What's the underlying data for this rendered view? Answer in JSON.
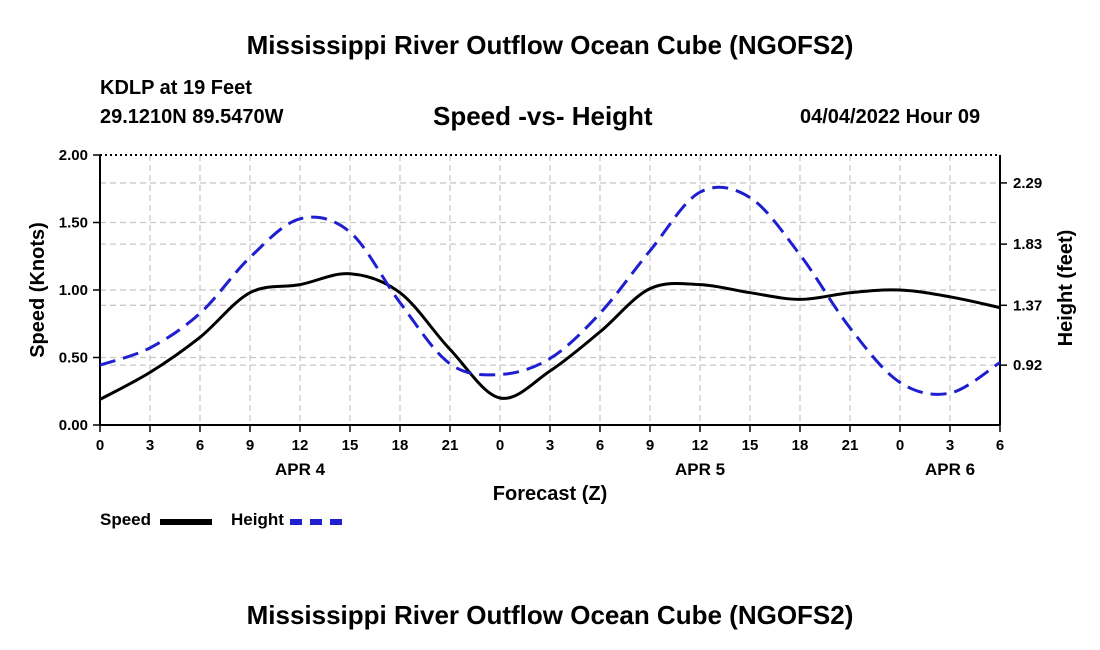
{
  "title": "Mississippi River Outflow Ocean Cube (NGOFS2)",
  "station": {
    "name": "KDLP at 19 Feet",
    "coords": "29.1210N  89.5470W"
  },
  "subtitle": "Speed -vs- Height",
  "datetime": "04/04/2022 Hour 09",
  "footer_title": "Mississippi River Outflow Ocean Cube (NGOFS2)",
  "legend": {
    "speed": "Speed",
    "height": "Height"
  },
  "colors": {
    "speed": "#000000",
    "height": "#1f1fd0",
    "grid": "#c8c8c8"
  },
  "chart_data": {
    "type": "line",
    "xlabel": "Forecast (Z)",
    "ylabel": "Speed (Knots)",
    "y2label": "Height (feet)",
    "xlim": [
      0,
      54
    ],
    "ylim": [
      0,
      2.0
    ],
    "y2lim": [
      0.47,
      2.5
    ],
    "x_ticks": [
      0,
      3,
      6,
      9,
      12,
      15,
      18,
      21,
      24,
      27,
      30,
      33,
      36,
      39,
      42,
      45,
      48,
      51,
      54
    ],
    "x_tick_labels": [
      "0",
      "3",
      "6",
      "9",
      "12",
      "15",
      "18",
      "21",
      "0",
      "3",
      "6",
      "9",
      "12",
      "15",
      "18",
      "21",
      "0",
      "3",
      "6"
    ],
    "y_ticks": [
      "0.00",
      "0.50",
      "1.00",
      "1.50",
      "2.00"
    ],
    "y2_ticks": [
      "0.92",
      "1.37",
      "1.83",
      "2.29"
    ],
    "date_labels": [
      {
        "label": "APR 4",
        "x": 12
      },
      {
        "label": "APR 5",
        "x": 36
      },
      {
        "label": "APR 6",
        "x": 51
      }
    ],
    "series": [
      {
        "name": "Speed",
        "axis": "left",
        "style": "solid",
        "x": [
          0,
          3,
          6,
          9,
          12,
          15,
          18,
          21,
          24,
          27,
          30,
          33,
          36,
          39,
          42,
          45,
          48,
          51,
          54
        ],
        "values": [
          0.19,
          0.39,
          0.65,
          0.98,
          1.04,
          1.12,
          0.98,
          0.56,
          0.2,
          0.4,
          0.69,
          1.01,
          1.04,
          0.98,
          0.93,
          0.98,
          1.0,
          0.95,
          0.87
        ]
      },
      {
        "name": "Height",
        "axis": "right",
        "style": "dashed",
        "x": [
          0,
          3,
          6,
          9,
          12,
          15,
          18,
          21,
          24,
          27,
          30,
          33,
          36,
          39,
          42,
          45,
          48,
          51,
          54
        ],
        "values": [
          0.92,
          1.05,
          1.31,
          1.73,
          2.02,
          1.92,
          1.39,
          0.93,
          0.85,
          0.97,
          1.31,
          1.78,
          2.22,
          2.18,
          1.75,
          1.2,
          0.79,
          0.71,
          0.94
        ]
      }
    ]
  }
}
